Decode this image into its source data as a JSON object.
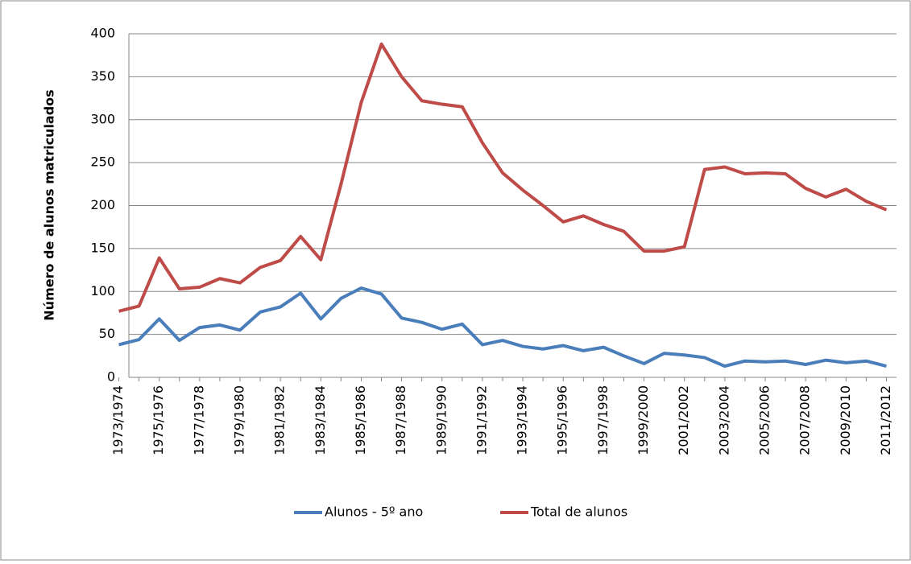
{
  "chart_data": {
    "type": "line",
    "y_label": "Número de alunos matriculados",
    "categories": [
      "1973/1974",
      null,
      "1975/1976",
      null,
      "1977/1978",
      null,
      "1979/1980",
      null,
      "1981/1982",
      null,
      "1983/1984",
      null,
      "1985/1986",
      null,
      "1987/1988",
      null,
      "1989/1990",
      null,
      "1991/1992",
      null,
      "1993/1994",
      null,
      "1995/1996",
      null,
      "1997/1998",
      null,
      "1999/2000",
      null,
      "2001/2002",
      null,
      "2003/2004",
      null,
      "2005/2006",
      null,
      "2007/2008",
      null,
      "2009/2010",
      null,
      "2011/2012"
    ],
    "series": [
      {
        "name": "Alunos - 5º ano",
        "color": "#4a7ebb",
        "values": [
          38,
          44,
          68,
          43,
          58,
          61,
          55,
          76,
          82,
          98,
          68,
          92,
          104,
          97,
          69,
          64,
          56,
          62,
          38,
          43,
          36,
          33,
          37,
          31,
          35,
          25,
          16,
          28,
          26,
          23,
          13,
          19,
          18,
          19,
          15,
          20,
          17,
          19,
          13
        ]
      },
      {
        "name": "Total de alunos",
        "color": "#be4b48",
        "values": [
          77,
          83,
          139,
          103,
          105,
          115,
          110,
          128,
          136,
          164,
          137,
          225,
          320,
          388,
          350,
          322,
          318,
          315,
          273,
          238,
          218,
          200,
          181,
          188,
          178,
          170,
          147,
          147,
          152,
          242,
          245,
          237,
          238,
          237,
          220,
          210,
          219,
          205,
          195
        ]
      }
    ],
    "ylim": [
      0,
      400
    ],
    "yticks": [
      0,
      50,
      100,
      150,
      200,
      250,
      300,
      350,
      400
    ],
    "grid": true,
    "legend": "bottom"
  }
}
